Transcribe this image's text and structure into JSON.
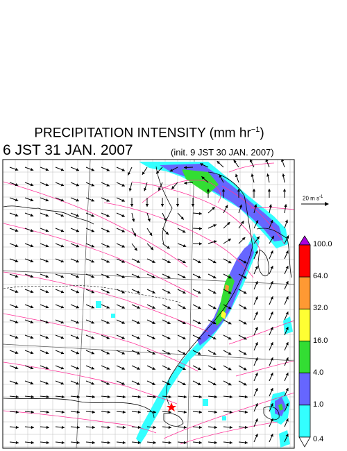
{
  "header": {
    "title_prefix": "PRECIPITATION INTENSITY (mm hr",
    "title_exp": "−1",
    "title_suffix": ")",
    "valid_time": "6 JST 31 JAN. 2007",
    "init_time": "(init. 9 JST 30 JAN. 2007)"
  },
  "reference_vector": {
    "label_prefix": "20 m s",
    "label_exp": "-1"
  },
  "colorbar": {
    "labels": [
      "100.0",
      "64.0",
      "32.0",
      "16.0",
      "4.0",
      "1.0",
      "0.4"
    ],
    "colors": [
      "#ff0000",
      "#ff9933",
      "#ffff33",
      "#33dd33",
      "#6666ff",
      "#33ffff"
    ],
    "overflow_color": "#aa00dd",
    "underflow_color": "#ffffff"
  },
  "map": {
    "background": "#ffffff",
    "grid_color": "#bbbbbb",
    "coast_color": "#000000",
    "wind_arrow_color": "#000000",
    "streamline_color": "#ff3399",
    "marker": {
      "symbol": "star",
      "color": "#ff0000"
    }
  }
}
